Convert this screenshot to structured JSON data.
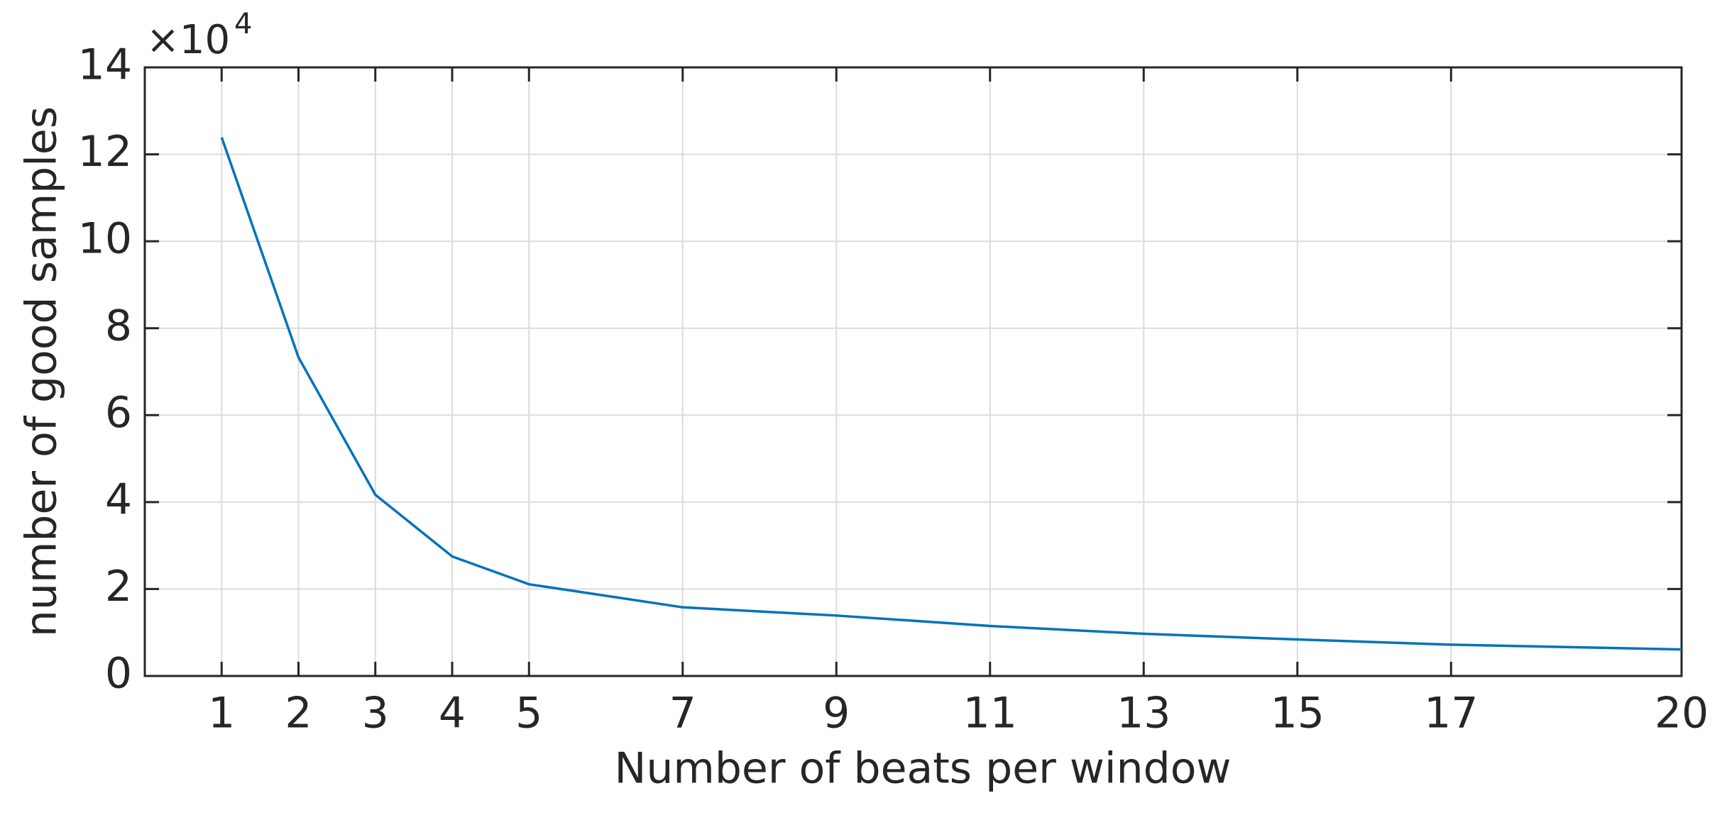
{
  "chart_data": {
    "type": "line",
    "xlabel": "Number of beats per window",
    "ylabel": "number of good samples",
    "exponent": {
      "base": "×10",
      "power": "4"
    },
    "x": [
      1,
      2,
      3,
      4,
      5,
      7,
      9,
      11,
      13,
      15,
      17,
      20
    ],
    "values": [
      123900,
      73300,
      41700,
      27500,
      21100,
      15800,
      13900,
      11500,
      9700,
      8400,
      7200,
      6100
    ],
    "color": "#0072bd",
    "xlim": [
      0,
      20
    ],
    "xticks": [
      1,
      2,
      3,
      4,
      5,
      7,
      9,
      11,
      13,
      15,
      17,
      20
    ],
    "ylim": [
      0,
      140000
    ],
    "yticks": [
      {
        "value": 0,
        "label": "0"
      },
      {
        "value": 20000,
        "label": "2"
      },
      {
        "value": 40000,
        "label": "4"
      },
      {
        "value": 60000,
        "label": "6"
      },
      {
        "value": 80000,
        "label": "8"
      },
      {
        "value": 100000,
        "label": "10"
      },
      {
        "value": 120000,
        "label": "12"
      },
      {
        "value": 140000,
        "label": "14"
      }
    ],
    "grid": true
  }
}
